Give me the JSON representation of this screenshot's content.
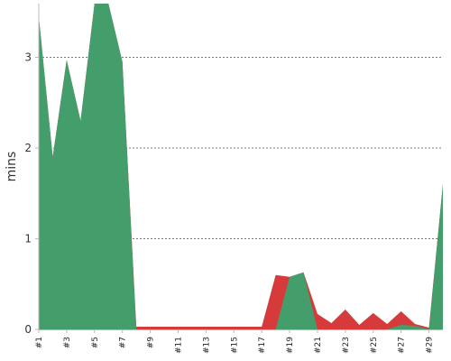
{
  "chart_data": {
    "type": "area",
    "title": "",
    "xlabel": "",
    "ylabel": "mins",
    "ylim": [
      0,
      3.6
    ],
    "y_ticks": [
      "0",
      "1",
      "2",
      "3"
    ],
    "grid": true,
    "legend": "none",
    "x": [
      "#1",
      "#2",
      "#3",
      "#4",
      "#5",
      "#6",
      "#7",
      "#8",
      "#9",
      "#10",
      "#11",
      "#12",
      "#13",
      "#14",
      "#15",
      "#16",
      "#17",
      "#18",
      "#19",
      "#20",
      "#21",
      "#22",
      "#23",
      "#24",
      "#25",
      "#26",
      "#27",
      "#28",
      "#29",
      "#30"
    ],
    "x_tick_labels": [
      "#1",
      "#3",
      "#5",
      "#7",
      "#9",
      "#11",
      "#13",
      "#15",
      "#17",
      "#19",
      "#21",
      "#23",
      "#25",
      "#27",
      "#29"
    ],
    "series": [
      {
        "color": "#d63a3a",
        "values": [
          3.45,
          1.9,
          2.97,
          2.3,
          3.6,
          3.6,
          2.95,
          0.03,
          0.03,
          0.03,
          0.03,
          0.03,
          0.03,
          0.03,
          0.03,
          0.03,
          0.03,
          0.6,
          0.58,
          0.63,
          0.17,
          0.07,
          0.22,
          0.05,
          0.18,
          0.06,
          0.2,
          0.06,
          0.02,
          1.6
        ]
      },
      {
        "color": "#449e6c",
        "values": [
          3.45,
          1.9,
          2.97,
          2.3,
          3.6,
          3.6,
          2.95,
          0,
          0,
          0,
          0,
          0,
          0,
          0,
          0,
          0,
          0,
          0,
          0.58,
          0.63,
          0,
          0,
          0,
          0,
          0,
          0,
          0.05,
          0.04,
          0,
          1.6
        ]
      }
    ]
  }
}
